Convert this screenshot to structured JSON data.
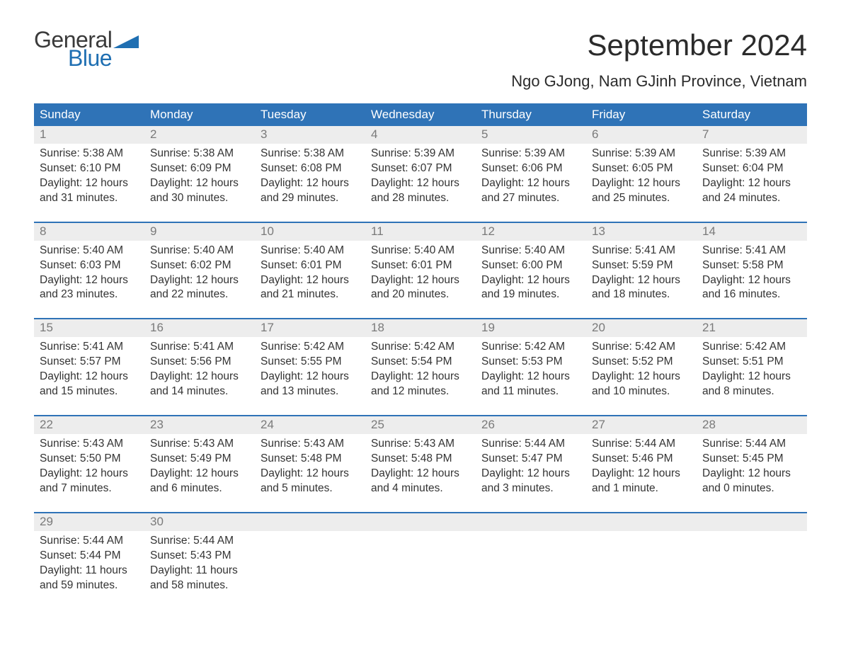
{
  "brand": {
    "text1": "General",
    "text2": "Blue",
    "flag_color": "#1f6fb2"
  },
  "title": "September 2024",
  "location": "Ngo GJong, Nam GJinh Province, Vietnam",
  "styling": {
    "header_bg": "#2f73b7",
    "header_text": "#ffffff",
    "band_bg": "#ededed",
    "daynum_color": "#7a7a7a",
    "body_text": "#333333",
    "rule_color": "#2f73b7",
    "title_fontsize": 42,
    "location_fontsize": 22,
    "dow_fontsize": 17,
    "cell_fontsize": 15.5
  },
  "dow": [
    "Sunday",
    "Monday",
    "Tuesday",
    "Wednesday",
    "Thursday",
    "Friday",
    "Saturday"
  ],
  "weeks": [
    [
      {
        "n": "1",
        "sr": "Sunrise: 5:38 AM",
        "ss": "Sunset: 6:10 PM",
        "d1": "Daylight: 12 hours",
        "d2": "and 31 minutes."
      },
      {
        "n": "2",
        "sr": "Sunrise: 5:38 AM",
        "ss": "Sunset: 6:09 PM",
        "d1": "Daylight: 12 hours",
        "d2": "and 30 minutes."
      },
      {
        "n": "3",
        "sr": "Sunrise: 5:38 AM",
        "ss": "Sunset: 6:08 PM",
        "d1": "Daylight: 12 hours",
        "d2": "and 29 minutes."
      },
      {
        "n": "4",
        "sr": "Sunrise: 5:39 AM",
        "ss": "Sunset: 6:07 PM",
        "d1": "Daylight: 12 hours",
        "d2": "and 28 minutes."
      },
      {
        "n": "5",
        "sr": "Sunrise: 5:39 AM",
        "ss": "Sunset: 6:06 PM",
        "d1": "Daylight: 12 hours",
        "d2": "and 27 minutes."
      },
      {
        "n": "6",
        "sr": "Sunrise: 5:39 AM",
        "ss": "Sunset: 6:05 PM",
        "d1": "Daylight: 12 hours",
        "d2": "and 25 minutes."
      },
      {
        "n": "7",
        "sr": "Sunrise: 5:39 AM",
        "ss": "Sunset: 6:04 PM",
        "d1": "Daylight: 12 hours",
        "d2": "and 24 minutes."
      }
    ],
    [
      {
        "n": "8",
        "sr": "Sunrise: 5:40 AM",
        "ss": "Sunset: 6:03 PM",
        "d1": "Daylight: 12 hours",
        "d2": "and 23 minutes."
      },
      {
        "n": "9",
        "sr": "Sunrise: 5:40 AM",
        "ss": "Sunset: 6:02 PM",
        "d1": "Daylight: 12 hours",
        "d2": "and 22 minutes."
      },
      {
        "n": "10",
        "sr": "Sunrise: 5:40 AM",
        "ss": "Sunset: 6:01 PM",
        "d1": "Daylight: 12 hours",
        "d2": "and 21 minutes."
      },
      {
        "n": "11",
        "sr": "Sunrise: 5:40 AM",
        "ss": "Sunset: 6:01 PM",
        "d1": "Daylight: 12 hours",
        "d2": "and 20 minutes."
      },
      {
        "n": "12",
        "sr": "Sunrise: 5:40 AM",
        "ss": "Sunset: 6:00 PM",
        "d1": "Daylight: 12 hours",
        "d2": "and 19 minutes."
      },
      {
        "n": "13",
        "sr": "Sunrise: 5:41 AM",
        "ss": "Sunset: 5:59 PM",
        "d1": "Daylight: 12 hours",
        "d2": "and 18 minutes."
      },
      {
        "n": "14",
        "sr": "Sunrise: 5:41 AM",
        "ss": "Sunset: 5:58 PM",
        "d1": "Daylight: 12 hours",
        "d2": "and 16 minutes."
      }
    ],
    [
      {
        "n": "15",
        "sr": "Sunrise: 5:41 AM",
        "ss": "Sunset: 5:57 PM",
        "d1": "Daylight: 12 hours",
        "d2": "and 15 minutes."
      },
      {
        "n": "16",
        "sr": "Sunrise: 5:41 AM",
        "ss": "Sunset: 5:56 PM",
        "d1": "Daylight: 12 hours",
        "d2": "and 14 minutes."
      },
      {
        "n": "17",
        "sr": "Sunrise: 5:42 AM",
        "ss": "Sunset: 5:55 PM",
        "d1": "Daylight: 12 hours",
        "d2": "and 13 minutes."
      },
      {
        "n": "18",
        "sr": "Sunrise: 5:42 AM",
        "ss": "Sunset: 5:54 PM",
        "d1": "Daylight: 12 hours",
        "d2": "and 12 minutes."
      },
      {
        "n": "19",
        "sr": "Sunrise: 5:42 AM",
        "ss": "Sunset: 5:53 PM",
        "d1": "Daylight: 12 hours",
        "d2": "and 11 minutes."
      },
      {
        "n": "20",
        "sr": "Sunrise: 5:42 AM",
        "ss": "Sunset: 5:52 PM",
        "d1": "Daylight: 12 hours",
        "d2": "and 10 minutes."
      },
      {
        "n": "21",
        "sr": "Sunrise: 5:42 AM",
        "ss": "Sunset: 5:51 PM",
        "d1": "Daylight: 12 hours",
        "d2": "and 8 minutes."
      }
    ],
    [
      {
        "n": "22",
        "sr": "Sunrise: 5:43 AM",
        "ss": "Sunset: 5:50 PM",
        "d1": "Daylight: 12 hours",
        "d2": "and 7 minutes."
      },
      {
        "n": "23",
        "sr": "Sunrise: 5:43 AM",
        "ss": "Sunset: 5:49 PM",
        "d1": "Daylight: 12 hours",
        "d2": "and 6 minutes."
      },
      {
        "n": "24",
        "sr": "Sunrise: 5:43 AM",
        "ss": "Sunset: 5:48 PM",
        "d1": "Daylight: 12 hours",
        "d2": "and 5 minutes."
      },
      {
        "n": "25",
        "sr": "Sunrise: 5:43 AM",
        "ss": "Sunset: 5:48 PM",
        "d1": "Daylight: 12 hours",
        "d2": "and 4 minutes."
      },
      {
        "n": "26",
        "sr": "Sunrise: 5:44 AM",
        "ss": "Sunset: 5:47 PM",
        "d1": "Daylight: 12 hours",
        "d2": "and 3 minutes."
      },
      {
        "n": "27",
        "sr": "Sunrise: 5:44 AM",
        "ss": "Sunset: 5:46 PM",
        "d1": "Daylight: 12 hours",
        "d2": "and 1 minute."
      },
      {
        "n": "28",
        "sr": "Sunrise: 5:44 AM",
        "ss": "Sunset: 5:45 PM",
        "d1": "Daylight: 12 hours",
        "d2": "and 0 minutes."
      }
    ],
    [
      {
        "n": "29",
        "sr": "Sunrise: 5:44 AM",
        "ss": "Sunset: 5:44 PM",
        "d1": "Daylight: 11 hours",
        "d2": "and 59 minutes."
      },
      {
        "n": "30",
        "sr": "Sunrise: 5:44 AM",
        "ss": "Sunset: 5:43 PM",
        "d1": "Daylight: 11 hours",
        "d2": "and 58 minutes."
      },
      null,
      null,
      null,
      null,
      null
    ]
  ]
}
